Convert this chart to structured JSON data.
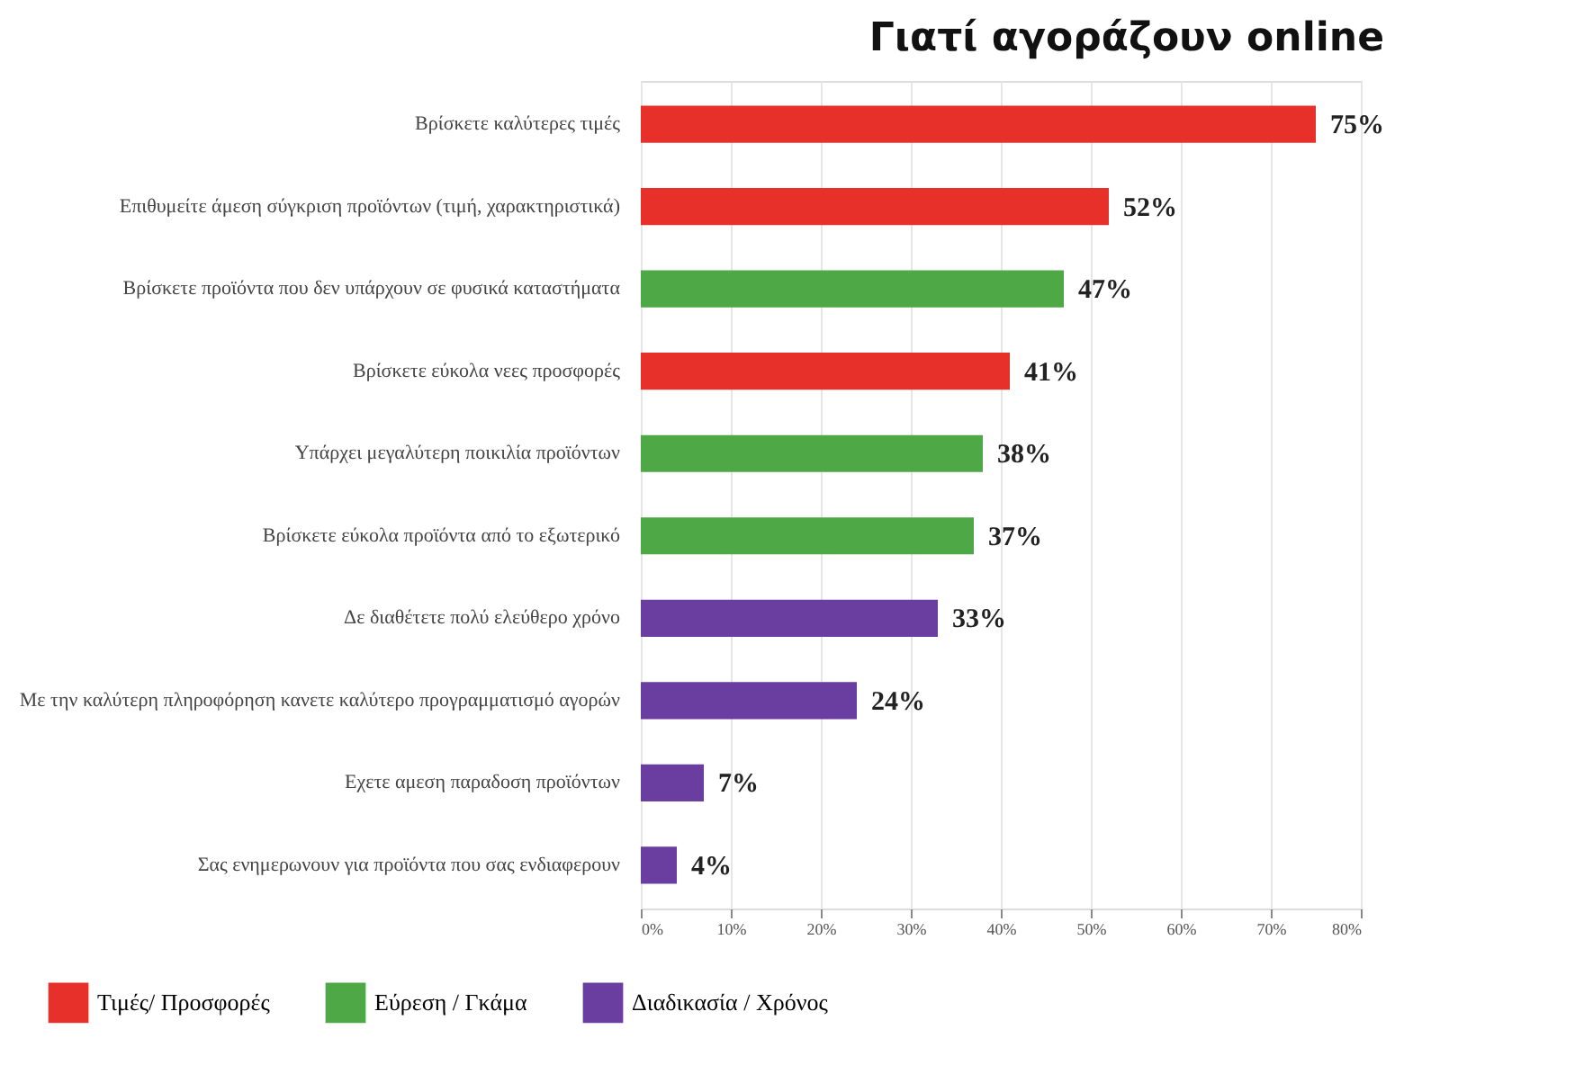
{
  "chart_data": {
    "type": "bar",
    "orientation": "horizontal",
    "title": "Γιατί αγοράζουν online",
    "categories": [
      "Βρίσκετε καλύτερες τιμές",
      "Επιθυμείτε άμεση σύγκριση προϊόντων (τιμή, χαρακτηριστικά)",
      "Βρίσκετε προϊόντα που δεν υπάρχουν σε φυσικά καταστήματα",
      "Βρίσκετε εύκολα νεες προσφορές",
      "Υπάρχει μεγαλύτερη ποικιλία προϊόντων",
      "Βρίσκετε εύκολα προϊόντα από το εξωτερικό",
      "Δε διαθέτετε πολύ ελεύθερο χρόνο",
      "Με την καλύτερη πληροφόρηση κανετε καλύτερο προγραμματισμό αγορών",
      "Εχετε αμεση παραδοση προϊόντων",
      "Σας ενημερωνουν για προϊόντα που σας ενδιαφερουν"
    ],
    "series": [
      {
        "name": "Τιμές/ Προσφορές",
        "color": "#e8302a",
        "values": [
          75,
          52,
          null,
          41,
          null,
          null,
          null,
          null,
          null,
          null
        ],
        "value_labels": [
          "75%",
          "52%",
          null,
          "41%",
          null,
          null,
          null,
          null,
          null,
          null
        ]
      },
      {
        "name": "Εύρεση / Γκάμα",
        "color": "#4ea846",
        "values": [
          null,
          null,
          47,
          null,
          38,
          37,
          null,
          null,
          null,
          null
        ],
        "value_labels": [
          null,
          null,
          "47%",
          null,
          "38%",
          "37%",
          null,
          null,
          null,
          null
        ]
      },
      {
        "name": "Διαδικασία / Χρόνος",
        "color": "#6a3ea1",
        "values": [
          null,
          null,
          null,
          null,
          null,
          null,
          33,
          24,
          7,
          4
        ],
        "value_labels": [
          null,
          null,
          null,
          null,
          null,
          null,
          "33%",
          "24%",
          "7%",
          "4%"
        ]
      }
    ],
    "xlim": [
      0,
      80
    ],
    "xticks": [
      {
        "value": 0,
        "label": "0%"
      },
      {
        "value": 10,
        "label": "10%"
      },
      {
        "value": 20,
        "label": "20%"
      },
      {
        "value": 30,
        "label": "30%"
      },
      {
        "value": 40,
        "label": "40%"
      },
      {
        "value": 50,
        "label": "50%"
      },
      {
        "value": 60,
        "label": "60%"
      },
      {
        "value": 70,
        "label": "70%"
      },
      {
        "value": 80,
        "label": "80%"
      }
    ],
    "grid": "x",
    "legend": "bottom left"
  }
}
